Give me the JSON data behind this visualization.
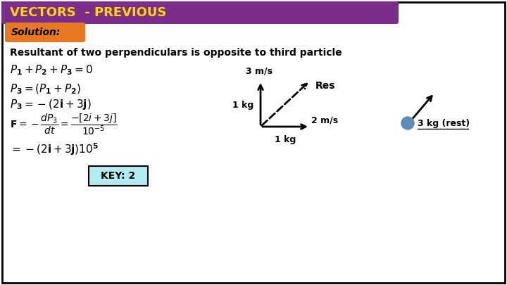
{
  "title": "VECTORS  - PREVIOUS",
  "title_bg": "#7B2D8B",
  "title_color": "#FFD700",
  "solution_bg": "#E87722",
  "solution_text": "Solution:",
  "body_bg": "#FFFFFF",
  "border_color": "#000000",
  "subtitle": "Resultant of two perpendiculars is opposite to third particle",
  "key_text": "KEY: 2",
  "key_bg": "#B2EBF2",
  "arrow_color": "#000000",
  "diagram_label_3ms": "3 m/s",
  "diagram_label_2ms": "2 m/s",
  "diagram_label_1kg_left": "1 kg",
  "diagram_label_1kg_bottom": "1 kg",
  "diagram_label_res": "Res",
  "diagram_label_3kg": "3 kg (rest)",
  "circle_color": "#5B8DB8"
}
